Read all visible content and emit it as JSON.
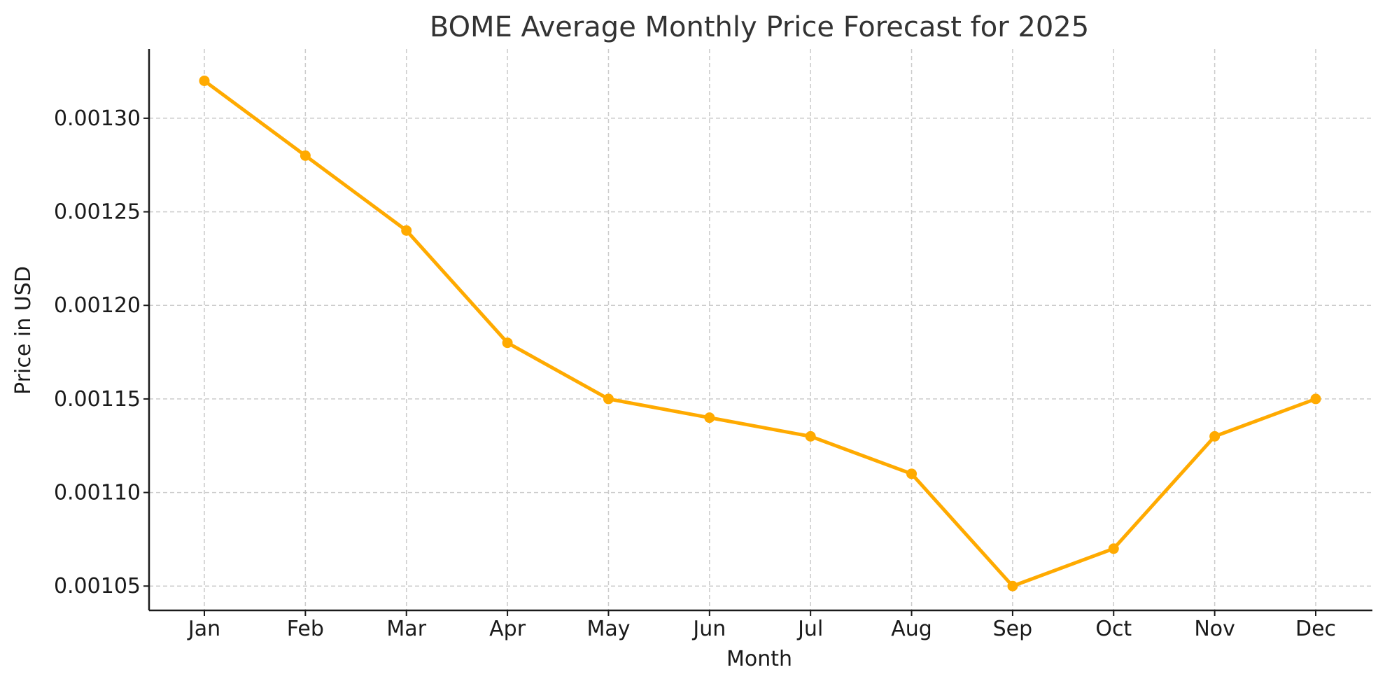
{
  "chart_data": {
    "type": "line",
    "title": "BOME Average Monthly Price Forecast for 2025",
    "xlabel": "Month",
    "ylabel": "Price in USD",
    "categories": [
      "Jan",
      "Feb",
      "Mar",
      "Apr",
      "May",
      "Jun",
      "Jul",
      "Aug",
      "Sep",
      "Oct",
      "Nov",
      "Dec"
    ],
    "series": [
      {
        "values": [
          0.00132,
          0.00128,
          0.00124,
          0.00118,
          0.00115,
          0.00114,
          0.00113,
          0.00111,
          0.00105,
          0.00107,
          0.00113,
          0.00115
        ],
        "color": "#FFAA00",
        "marker": "circle"
      }
    ],
    "yticks": [
      0.00105,
      0.0011,
      0.00115,
      0.0012,
      0.00125,
      0.0013
    ],
    "ytick_labels": [
      "0.00105",
      "0.00110",
      "0.00115",
      "0.00120",
      "0.00125",
      "0.00130"
    ],
    "ylim": [
      0.001037,
      0.001337
    ],
    "grid": true,
    "legend": "none"
  }
}
